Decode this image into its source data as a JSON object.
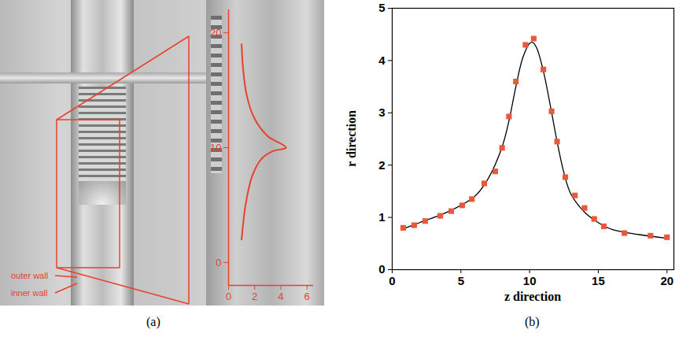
{
  "chart_data": [
    {
      "type": "line",
      "caption": "(a)",
      "annotations": [
        "outer wall",
        "inner wall"
      ],
      "color": "#e8412c",
      "x": [
        1.0,
        1.3,
        1.8,
        2.5,
        3.4,
        4.4,
        3.0,
        2.0,
        1.4,
        1.1,
        1.0
      ],
      "values": [
        2,
        5,
        7.5,
        9,
        9.7,
        10,
        11,
        12.5,
        14.5,
        17,
        19
      ],
      "xlim": [
        0,
        6.5
      ],
      "ylim": [
        -2,
        22
      ],
      "xticks": [
        0,
        2,
        4,
        6
      ],
      "yticks": [
        0,
        10,
        20
      ]
    },
    {
      "type": "scatter",
      "caption": "(b)",
      "x_label": "z direction",
      "y_label": "r direction",
      "xlim": [
        0,
        20.5
      ],
      "ylim": [
        0,
        5
      ],
      "xticks": [
        0,
        5,
        10,
        15,
        20
      ],
      "yticks": [
        0,
        1,
        2,
        3,
        4,
        5
      ],
      "series": [
        {
          "type": "scatter",
          "marker": "square",
          "color": "#e8583a",
          "x": [
            0.8,
            1.6,
            2.4,
            3.5,
            4.3,
            5.1,
            5.8,
            6.7,
            7.5,
            8.0,
            8.5,
            9.0,
            9.7,
            10.3,
            11.0,
            11.6,
            12.0,
            12.6,
            13.3,
            14.0,
            14.7,
            15.4,
            16.9,
            18.8,
            20.0
          ],
          "values": [
            0.8,
            0.85,
            0.93,
            1.03,
            1.12,
            1.23,
            1.35,
            1.65,
            1.88,
            2.33,
            2.93,
            3.6,
            4.3,
            4.42,
            3.83,
            3.03,
            2.45,
            1.77,
            1.42,
            1.18,
            0.97,
            0.83,
            0.7,
            0.65,
            0.62
          ]
        },
        {
          "type": "line",
          "line_style": "solid",
          "color": "#000000",
          "x": [
            0.8,
            2,
            4,
            6,
            7,
            8,
            8.5,
            9,
            9.5,
            10,
            10.2,
            10.5,
            11,
            11.5,
            12,
            12.5,
            13,
            14,
            15,
            16,
            18,
            20
          ],
          "values": [
            0.78,
            0.9,
            1.1,
            1.4,
            1.75,
            2.35,
            2.85,
            3.5,
            4.05,
            4.33,
            4.35,
            4.25,
            3.8,
            3.15,
            2.45,
            1.85,
            1.45,
            1.1,
            0.9,
            0.77,
            0.67,
            0.6
          ]
        }
      ]
    }
  ]
}
